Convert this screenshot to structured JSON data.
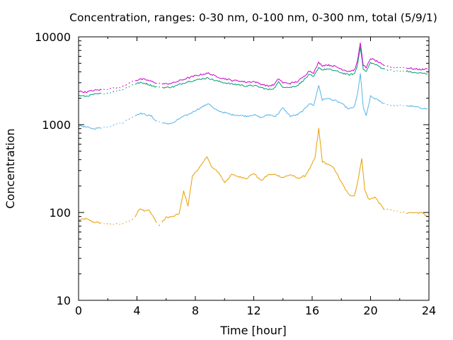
{
  "chart_data": {
    "type": "line",
    "title": "Concentration, ranges: 0-30 nm, 0-100 nm, 0-300 nm, total (5/9/1)",
    "xlabel": "Time [hour]",
    "ylabel": "Concentration",
    "xlim": [
      0,
      24
    ],
    "ylim": [
      10,
      10000
    ],
    "yscale": "log",
    "grid": false,
    "legend": "none",
    "x_ticks": [
      0,
      4,
      8,
      12,
      16,
      20,
      24
    ],
    "y_ticks": [
      10,
      100,
      1000,
      10000
    ],
    "y_tick_labels": [
      "10",
      "100",
      "1000",
      "10000"
    ],
    "series": [
      {
        "color": "#e69f00",
        "gaps": [
          [
            1.5,
            4.0
          ],
          [
            5.3,
            5.8
          ],
          [
            20.9,
            22.6
          ]
        ],
        "x": [
          0,
          0.5,
          1.0,
          1.5,
          2.0,
          3.0,
          3.8,
          4.2,
          4.5,
          4.8,
          5.0,
          5.3,
          5.5,
          6.0,
          6.5,
          6.9,
          7.2,
          7.5,
          7.8,
          8.1,
          8.5,
          8.8,
          9.1,
          9.6,
          10.0,
          10.5,
          11.0,
          11.5,
          12.0,
          12.5,
          13.0,
          13.5,
          14.0,
          14.5,
          15.0,
          15.5,
          15.9,
          16.2,
          16.45,
          16.7,
          17.0,
          17.5,
          18.0,
          18.5,
          18.9,
          19.2,
          19.4,
          19.6,
          19.9,
          20.3,
          20.9,
          21.5,
          22.3,
          23.0,
          23.5,
          23.9
        ],
        "y": [
          82,
          85,
          78,
          76,
          74,
          74,
          85,
          112,
          105,
          108,
          95,
          80,
          70,
          88,
          90,
          98,
          175,
          120,
          260,
          300,
          360,
          440,
          330,
          285,
          220,
          270,
          255,
          245,
          280,
          230,
          270,
          270,
          250,
          270,
          245,
          260,
          330,
          420,
          900,
          380,
          360,
          320,
          220,
          160,
          155,
          260,
          420,
          180,
          140,
          150,
          110,
          105,
          100,
          98,
          100,
          90
        ]
      },
      {
        "color": "#56b4e9",
        "gaps": [
          [
            1.5,
            4.0
          ],
          [
            5.3,
            5.8
          ],
          [
            20.9,
            22.6
          ]
        ],
        "x": [
          0,
          0.5,
          1.0,
          1.5,
          2.0,
          3.0,
          3.8,
          4.2,
          4.6,
          5.0,
          5.3,
          5.5,
          6.0,
          6.5,
          7.0,
          7.5,
          8.0,
          8.5,
          8.9,
          9.3,
          9.8,
          10.5,
          11.0,
          11.5,
          12.0,
          12.5,
          13.0,
          13.5,
          14.0,
          14.5,
          15.0,
          15.4,
          15.8,
          16.1,
          16.45,
          16.7,
          17.0,
          17.5,
          18.0,
          18.5,
          18.9,
          19.1,
          19.3,
          19.5,
          19.7,
          20.0,
          20.5,
          20.9,
          21.5,
          22.5,
          23.0,
          23.5,
          23.9
        ],
        "y": [
          980,
          940,
          900,
          920,
          950,
          1050,
          1250,
          1350,
          1300,
          1250,
          1100,
          1080,
          1020,
          1050,
          1200,
          1300,
          1450,
          1600,
          1750,
          1500,
          1400,
          1300,
          1280,
          1250,
          1300,
          1200,
          1300,
          1250,
          1550,
          1250,
          1300,
          1450,
          1750,
          1650,
          2800,
          1900,
          2000,
          1900,
          1750,
          1500,
          1600,
          2200,
          3800,
          1600,
          1250,
          2100,
          1900,
          1750,
          1650,
          1650,
          1600,
          1550,
          1500
        ]
      },
      {
        "color": "#009e73",
        "gaps": [
          [
            1.5,
            4.0
          ],
          [
            5.3,
            5.8
          ],
          [
            20.9,
            22.6
          ]
        ],
        "x": [
          0,
          0.5,
          1.0,
          1.5,
          2.0,
          3.0,
          3.8,
          4.2,
          4.6,
          5.0,
          5.3,
          5.5,
          6.0,
          6.5,
          7.0,
          7.5,
          8.0,
          8.5,
          8.9,
          9.3,
          9.8,
          10.5,
          11.0,
          11.5,
          12.0,
          12.5,
          13.0,
          13.4,
          13.7,
          14.0,
          14.5,
          15.0,
          15.4,
          15.8,
          16.1,
          16.45,
          16.7,
          17.0,
          17.5,
          18.0,
          18.5,
          18.9,
          19.1,
          19.3,
          19.5,
          19.7,
          20.0,
          20.5,
          20.9,
          21.5,
          22.5,
          23.0,
          23.5,
          23.9
        ],
        "y": [
          2150,
          2100,
          2200,
          2250,
          2300,
          2500,
          2900,
          3000,
          2950,
          2800,
          2700,
          2650,
          2650,
          2700,
          2900,
          3100,
          3200,
          3350,
          3400,
          3200,
          3050,
          2900,
          2850,
          2750,
          2800,
          2650,
          2500,
          2600,
          3050,
          2700,
          2650,
          2800,
          3200,
          3700,
          3500,
          4500,
          4200,
          4300,
          4150,
          3900,
          3700,
          3800,
          4700,
          7800,
          4300,
          4000,
          5100,
          4700,
          4300,
          4100,
          4050,
          3900,
          3850,
          3800
        ]
      },
      {
        "color": "#cc00cc",
        "gaps": [
          [
            1.5,
            4.0
          ],
          [
            5.3,
            5.8
          ],
          [
            20.9,
            22.6
          ]
        ],
        "x": [
          0,
          0.5,
          1.0,
          1.5,
          2.0,
          3.0,
          3.8,
          4.2,
          4.6,
          5.0,
          5.3,
          5.5,
          6.0,
          6.5,
          7.0,
          7.5,
          8.0,
          8.5,
          8.9,
          9.3,
          9.8,
          10.5,
          11.0,
          11.5,
          12.0,
          12.5,
          13.0,
          13.4,
          13.7,
          14.0,
          14.5,
          15.0,
          15.4,
          15.8,
          16.1,
          16.45,
          16.7,
          17.0,
          17.5,
          18.0,
          18.5,
          18.9,
          19.1,
          19.3,
          19.5,
          19.7,
          20.0,
          20.5,
          20.9,
          21.5,
          22.5,
          23.0,
          23.5,
          23.9
        ],
        "y": [
          2400,
          2350,
          2450,
          2500,
          2550,
          2700,
          3150,
          3300,
          3250,
          3100,
          3000,
          2950,
          2900,
          3000,
          3200,
          3400,
          3600,
          3750,
          3850,
          3600,
          3400,
          3200,
          3150,
          3050,
          3100,
          2900,
          2750,
          2850,
          3350,
          3000,
          2950,
          3100,
          3500,
          4100,
          3900,
          5100,
          4700,
          4800,
          4650,
          4300,
          4050,
          4200,
          5200,
          8600,
          4800,
          4400,
          5700,
          5200,
          4700,
          4500,
          4450,
          4300,
          4250,
          4300
        ]
      }
    ]
  }
}
